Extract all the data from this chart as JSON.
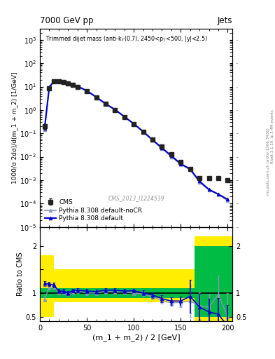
{
  "title_top": "7000 GeV pp",
  "title_right": "Jets",
  "annotation": "Trimmed dijet mass (anti-k_{T}(0.7), 2450<p_{T}<500, |y|<2.5)",
  "cms_label": "CMS_2013_I1224539",
  "rivet_label": "Rivet 3.1.10, ≥ 3.4M events",
  "arxiv_label": "mcplots.cern.ch [arXiv:1306.3436]",
  "ylabel_main": "1000/σ 2dσ)/d(m_1 + m_2) [1/GeV]",
  "ylabel_ratio": "Ratio to CMS",
  "xlabel": "(m_1 + m_2) / 2 [GeV]",
  "xlim": [
    0,
    205
  ],
  "cms_x": [
    5,
    10,
    15,
    20,
    25,
    30,
    35,
    40,
    50,
    60,
    70,
    80,
    90,
    100,
    110,
    120,
    130,
    140,
    150,
    160,
    170,
    180,
    190,
    200
  ],
  "cms_y": [
    0.2,
    8.5,
    17,
    17,
    16,
    14,
    12,
    10,
    6.5,
    3.5,
    1.8,
    1.0,
    0.5,
    0.25,
    0.12,
    0.055,
    0.027,
    0.013,
    0.006,
    0.003,
    0.0012,
    0.0012,
    0.0012,
    0.001
  ],
  "cms_yerr_lo": [
    0.05,
    0.5,
    0.8,
    0.8,
    0.7,
    0.6,
    0.5,
    0.4,
    0.25,
    0.15,
    0.08,
    0.05,
    0.025,
    0.012,
    0.006,
    0.003,
    0.0013,
    0.0006,
    0.0003,
    0.0002,
    0.0001,
    0.0001,
    0.0001,
    0.0001
  ],
  "cms_yerr_hi": [
    0.05,
    0.5,
    0.8,
    0.8,
    0.7,
    0.6,
    0.5,
    0.4,
    0.25,
    0.15,
    0.08,
    0.05,
    0.025,
    0.012,
    0.006,
    0.003,
    0.0013,
    0.0006,
    0.0003,
    0.0002,
    0.0001,
    0.0001,
    0.0001,
    0.0001
  ],
  "py_default_x": [
    5,
    10,
    15,
    20,
    25,
    30,
    35,
    40,
    50,
    60,
    70,
    80,
    90,
    100,
    110,
    120,
    130,
    140,
    150,
    160,
    170,
    180,
    190,
    200
  ],
  "py_default_y": [
    0.17,
    9.5,
    17,
    17,
    16.5,
    14.5,
    12.5,
    10.5,
    6.7,
    3.6,
    1.85,
    1.05,
    0.52,
    0.26,
    0.12,
    0.053,
    0.024,
    0.011,
    0.005,
    0.003,
    0.0009,
    0.0004,
    0.00025,
    0.00015
  ],
  "py_nocr_x": [
    5,
    10,
    15,
    20,
    25,
    30,
    35,
    40,
    50,
    60,
    70,
    80,
    90,
    100,
    110,
    120,
    130,
    140,
    150,
    160,
    170,
    180,
    190,
    200
  ],
  "py_nocr_y": [
    0.14,
    9.0,
    16.5,
    16.5,
    16.0,
    14.0,
    12.0,
    10.0,
    6.4,
    3.4,
    1.8,
    1.02,
    0.5,
    0.25,
    0.115,
    0.05,
    0.023,
    0.01,
    0.0048,
    0.0028,
    0.0008,
    0.00038,
    0.00025,
    0.00013
  ],
  "ratio_py_default": [
    1.2,
    1.19,
    1.17,
    1.04,
    1.04,
    1.0,
    1.05,
    1.06,
    1.04,
    1.03,
    1.06,
    1.06,
    1.04,
    1.05,
    1.0,
    0.96,
    0.88,
    0.83,
    0.83,
    0.93,
    0.7,
    0.6,
    0.55,
    0.3
  ],
  "ratio_py_nocr": [
    0.87,
    1.12,
    1.13,
    1.01,
    1.02,
    0.98,
    1.02,
    1.04,
    1.0,
    1.0,
    1.03,
    1.02,
    1.02,
    1.0,
    0.98,
    0.92,
    0.84,
    0.79,
    0.8,
    0.83,
    0.73,
    0.7,
    0.97,
    0.5
  ],
  "ratio_x": [
    5,
    10,
    15,
    20,
    25,
    30,
    35,
    40,
    50,
    60,
    70,
    80,
    90,
    100,
    110,
    120,
    130,
    140,
    150,
    160,
    170,
    180,
    190,
    200
  ],
  "ratio_yerr_default": [
    0.05,
    0.05,
    0.05,
    0.04,
    0.04,
    0.04,
    0.04,
    0.04,
    0.04,
    0.04,
    0.04,
    0.04,
    0.04,
    0.04,
    0.05,
    0.06,
    0.07,
    0.08,
    0.1,
    0.35,
    0.28,
    0.28,
    0.35,
    0.45
  ],
  "ratio_yerr_nocr": [
    0.05,
    0.05,
    0.05,
    0.04,
    0.04,
    0.04,
    0.04,
    0.04,
    0.04,
    0.04,
    0.04,
    0.04,
    0.04,
    0.04,
    0.05,
    0.06,
    0.07,
    0.08,
    0.1,
    0.35,
    0.28,
    0.28,
    0.4,
    0.5
  ],
  "green_band_edges": [
    0,
    155,
    165,
    175,
    185,
    195,
    205
  ],
  "green_band_lo": [
    0.9,
    0.9,
    0.5,
    0.5,
    0.5,
    0.5,
    0.5
  ],
  "green_band_hi": [
    1.1,
    1.1,
    2.0,
    2.0,
    2.0,
    2.0,
    2.0
  ],
  "yellow_band_edges": [
    0,
    5,
    15,
    155,
    165,
    175,
    185,
    195,
    205
  ],
  "yellow_band_lo": [
    0.5,
    0.5,
    0.8,
    0.8,
    0.4,
    0.4,
    0.4,
    0.4,
    0.4
  ],
  "yellow_band_hi": [
    1.8,
    1.8,
    1.5,
    1.5,
    2.2,
    2.2,
    2.2,
    2.2,
    2.2
  ],
  "color_cms": "#222222",
  "color_py_default": "#0000cc",
  "color_py_nocr": "#8899bb",
  "color_green": "#00bb44",
  "color_yellow": "#ffee00",
  "bg": "#ffffff"
}
